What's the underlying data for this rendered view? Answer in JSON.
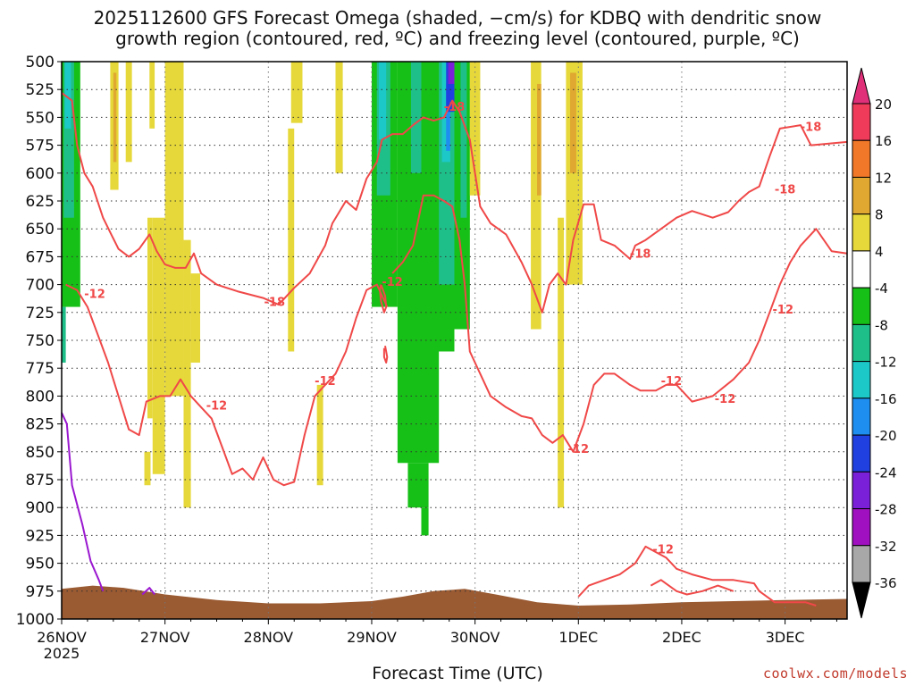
{
  "chart_data": {
    "type": "heatmap",
    "title_line1": "2025112600 GFS Forecast Omega (shaded, −cm/s) for KDBQ with dendritic snow",
    "title_line2": "growth region (contoured, red, ºC) and freezing level (contoured, purple, ºC)",
    "xlabel": "Forecast Time (UTC)",
    "credit": "coolwx.com/models",
    "x_ticks": [
      "26NOV",
      "27NOV",
      "28NOV",
      "29NOV",
      "30NOV",
      "1DEC",
      "2DEC",
      "3DEC"
    ],
    "x_year_label": "2025",
    "xlim_days": [
      0,
      7.6
    ],
    "y_ticks": [
      500,
      525,
      550,
      575,
      600,
      625,
      650,
      675,
      700,
      725,
      750,
      775,
      800,
      825,
      850,
      875,
      900,
      925,
      950,
      975,
      1000
    ],
    "ylim_hpa": [
      500,
      1000
    ],
    "y_inverted": true,
    "grid": true,
    "colorbar": {
      "labels": [
        "20",
        "16",
        "12",
        "8",
        "4",
        "-4",
        "-8",
        "-12",
        "-16",
        "-20",
        "-24",
        "-28",
        "-32",
        "-36"
      ],
      "bands": [
        {
          "from": 20,
          "to": 16,
          "color": "#f03c5a"
        },
        {
          "from": 16,
          "to": 12,
          "color": "#f07828"
        },
        {
          "from": 12,
          "to": 8,
          "color": "#e0a830"
        },
        {
          "from": 8,
          "to": 4,
          "color": "#e6d83a"
        },
        {
          "from": 4,
          "to": -4,
          "color": "#ffffff"
        },
        {
          "from": -4,
          "to": -8,
          "color": "#16c016"
        },
        {
          "from": -8,
          "to": -12,
          "color": "#1fbf8a"
        },
        {
          "from": -12,
          "to": -16,
          "color": "#1cc8c8"
        },
        {
          "from": -16,
          "to": -20,
          "color": "#1e8ef0"
        },
        {
          "from": -20,
          "to": -24,
          "color": "#2040e0"
        },
        {
          "from": -24,
          "to": -28,
          "color": "#7a20d8"
        },
        {
          "from": -28,
          "to": -32,
          "color": "#a010c0"
        },
        {
          "from": -32,
          "to": -36,
          "color": "#a8a8a8"
        }
      ],
      "over_color": "#e0307a",
      "under_color": "#000000"
    },
    "contour_labels": [
      "-18",
      "-12",
      "-12",
      "-18",
      "-12",
      "-12",
      "-18",
      "-12",
      "-12",
      "-12",
      "-12",
      "-18",
      "-12",
      "-18"
    ],
    "ground_color": "#9a5a32",
    "dgz_color": "#f04848",
    "freezing_color": "#9a18d0"
  }
}
